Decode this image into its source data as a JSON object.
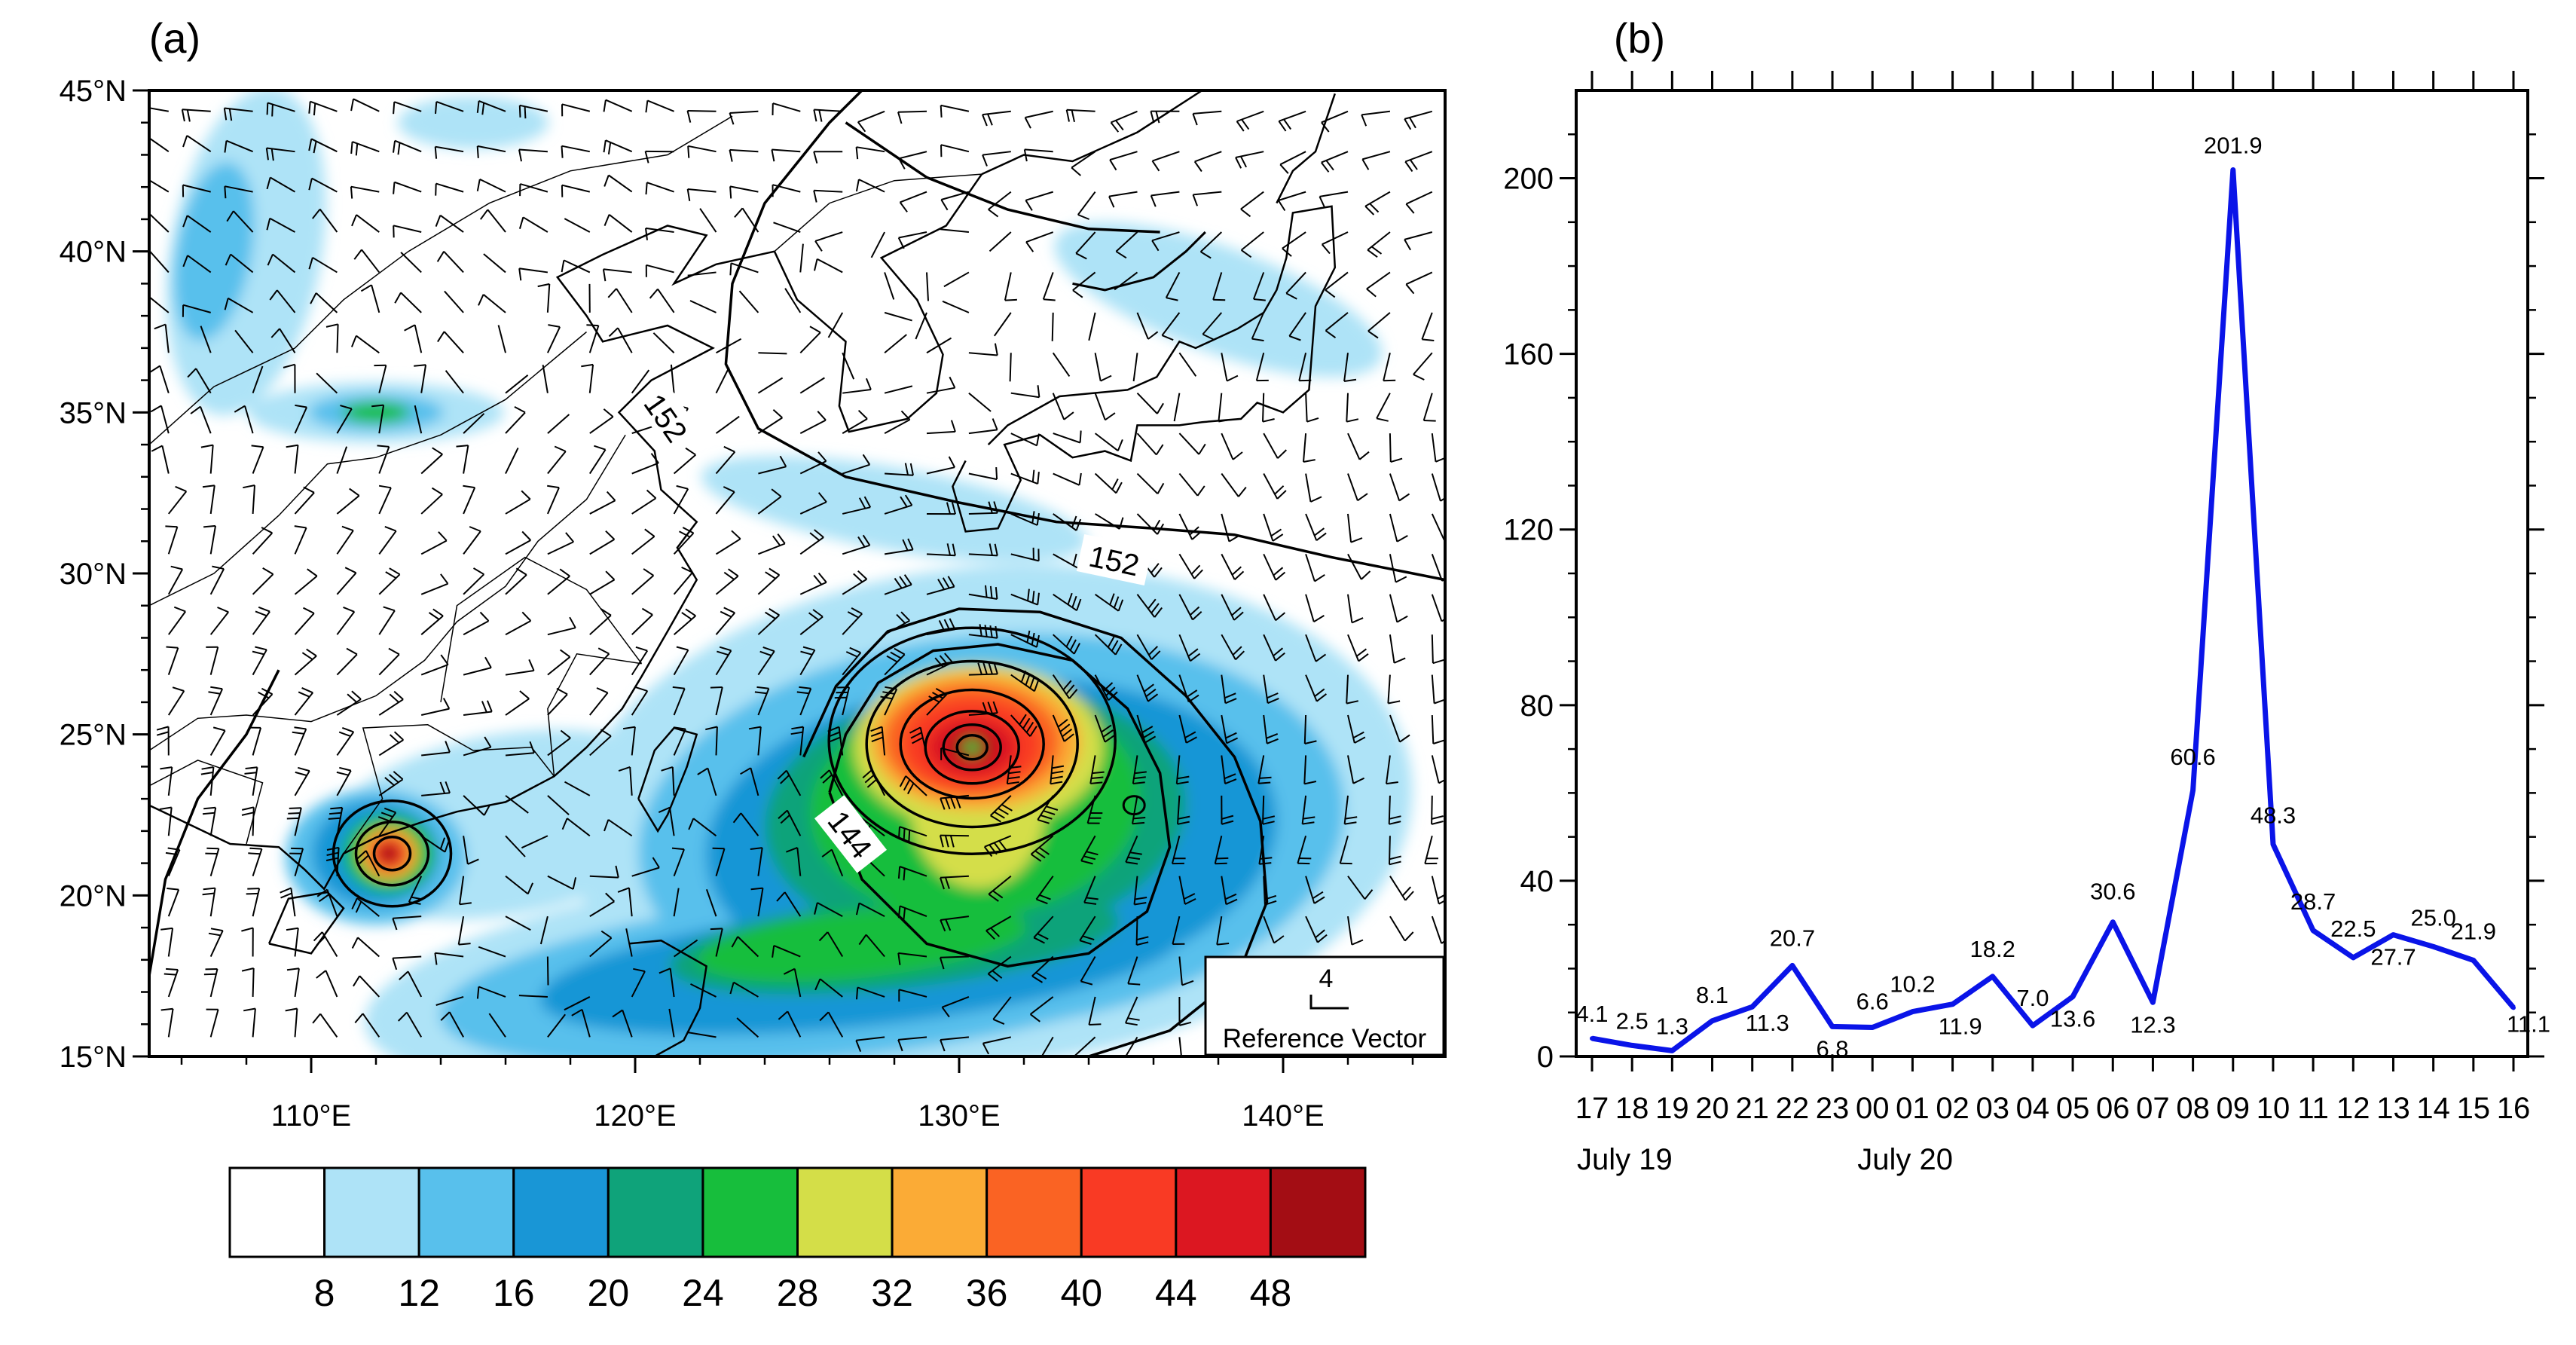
{
  "chart_data": [
    {
      "panel": "(a)",
      "type": "heatmap",
      "title": "(a)",
      "x_axis": {
        "range": [
          105,
          145
        ],
        "ticks": [
          110,
          120,
          130,
          140
        ],
        "tick_labels": [
          "110°E",
          "120°E",
          "130°E",
          "140°E"
        ]
      },
      "y_axis": {
        "range": [
          15,
          45
        ],
        "ticks": [
          15,
          20,
          25,
          30,
          35,
          40,
          45
        ],
        "tick_labels": [
          "15°N",
          "20°N",
          "25°N",
          "30°N",
          "35°N",
          "40°N",
          "45°N"
        ]
      },
      "colorbar": {
        "labels": [
          "8",
          "12",
          "16",
          "20",
          "24",
          "28",
          "32",
          "36",
          "40",
          "44",
          "48"
        ],
        "colors": [
          "#ffffff",
          "#aee3f7",
          "#58c0ec",
          "#1996d6",
          "#0fa37a",
          "#17be3c",
          "#d4de48",
          "#fbab36",
          "#fa6323",
          "#f93a24",
          "#dc1721",
          "#a30d14"
        ]
      },
      "contour_labels": [
        "152",
        "152",
        "144"
      ],
      "reference_vector": {
        "value": "4",
        "label": "Reference Vector"
      },
      "cyclones": [
        {
          "name": "eastern-typhoon",
          "lon": 130.4,
          "lat": 24.6
        },
        {
          "name": "western-typhoon",
          "lon": 112.5,
          "lat": 21.3
        }
      ]
    },
    {
      "panel": "(b)",
      "type": "line",
      "title": "(b)",
      "categories": [
        "17",
        "18",
        "19",
        "20",
        "21",
        "22",
        "23",
        "00",
        "01",
        "02",
        "03",
        "04",
        "05",
        "06",
        "07",
        "08",
        "09",
        "10",
        "11",
        "12",
        "13",
        "14",
        "15",
        "16"
      ],
      "date_labels": [
        {
          "text": "July 19",
          "at_index": 0
        },
        {
          "text": "July 20",
          "at_index": 7
        }
      ],
      "series": [
        {
          "name": "series",
          "color": "#0a14e8",
          "values": [
            4.1,
            2.5,
            1.3,
            8.1,
            11.3,
            20.7,
            6.8,
            6.6,
            10.2,
            11.9,
            18.2,
            7.0,
            13.6,
            30.6,
            12.3,
            60.6,
            201.9,
            48.3,
            28.7,
            22.5,
            27.7,
            25.0,
            21.9,
            11.1
          ],
          "value_labels": [
            "4.1",
            "2.5",
            "1.3",
            "8.1",
            "11.3",
            "20.7",
            "6.8",
            "6.6",
            "10.2",
            "11.9",
            "18.2",
            "7.0",
            "13.6",
            "30.6",
            "12.3",
            "60.6",
            "201.9",
            "48.3",
            "28.7",
            "22.5",
            "27.7",
            "25.0",
            "21.9",
            "11.1"
          ]
        }
      ],
      "ylim": [
        0,
        220
      ],
      "yticks": [
        0,
        40,
        80,
        120,
        160,
        200
      ],
      "ytick_labels": [
        "0",
        "40",
        "80",
        "120",
        "160",
        "200"
      ],
      "xlabel": "",
      "ylabel": ""
    }
  ]
}
